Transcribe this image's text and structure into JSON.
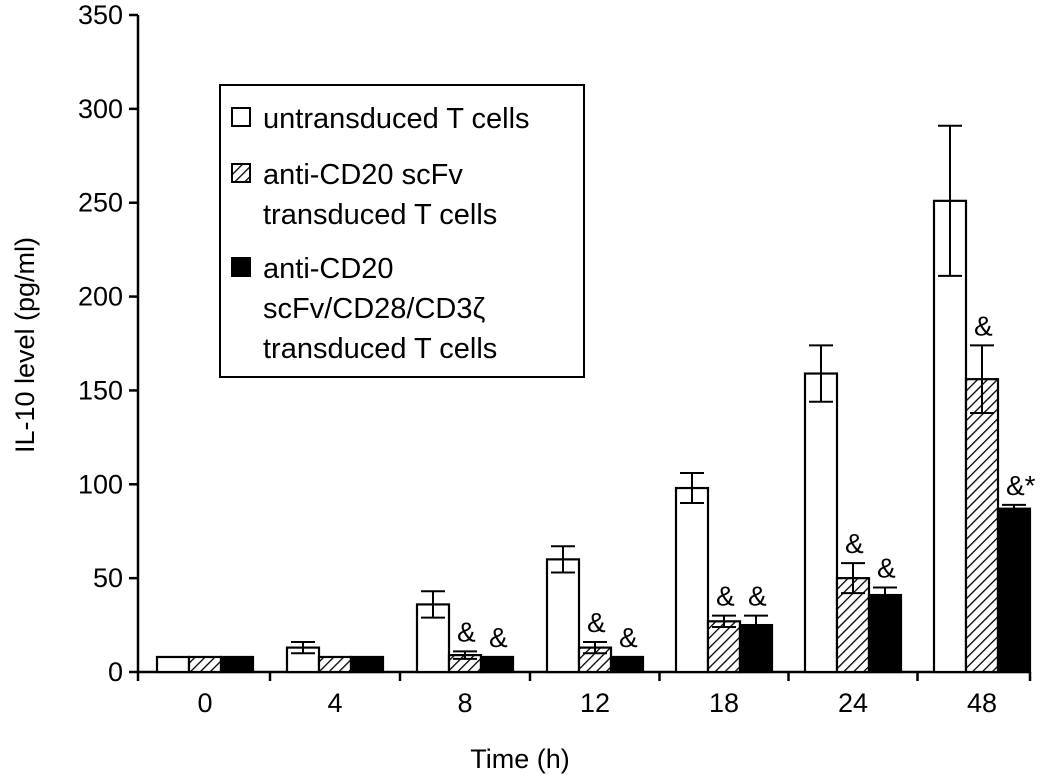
{
  "chart_data": {
    "type": "bar",
    "title": "",
    "xlabel": "Time (h)",
    "ylabel": "IL-10 level (pg/ml)",
    "ylim": [
      0,
      350
    ],
    "yticks": [
      0,
      50,
      100,
      150,
      200,
      250,
      300,
      350
    ],
    "categories": [
      "0",
      "4",
      "8",
      "12",
      "18",
      "24",
      "48"
    ],
    "grid": false,
    "legend_position": "top-left",
    "series": [
      {
        "name": "untransduced T cells",
        "pattern": "open",
        "values": [
          8,
          13,
          36,
          60,
          98,
          159,
          251
        ],
        "errors": [
          0,
          3,
          7,
          7,
          8,
          15,
          40
        ]
      },
      {
        "name": "anti-CD20 scFv transduced T cells",
        "legend_lines": [
          "anti-CD20 scFv",
          "transduced T cells"
        ],
        "pattern": "hatched",
        "values": [
          8,
          8,
          9,
          13,
          27,
          50,
          156
        ],
        "errors": [
          0,
          0,
          2,
          3,
          3,
          8,
          18
        ]
      },
      {
        "name": "anti-CD20 scFv/CD28/CD3ζ transduced T cells",
        "legend_lines": [
          "anti-CD20",
          "scFv/CD28/CD3ζ",
          "transduced T cells"
        ],
        "pattern": "solid",
        "values": [
          8,
          8,
          8,
          8,
          25,
          41,
          87
        ],
        "errors": [
          0,
          0,
          0,
          0,
          5,
          4,
          2
        ]
      }
    ],
    "annotations": [
      {
        "category": "8",
        "series": 1,
        "text": "&"
      },
      {
        "category": "8",
        "series": 2,
        "text": "&"
      },
      {
        "category": "12",
        "series": 1,
        "text": "&"
      },
      {
        "category": "12",
        "series": 2,
        "text": "&"
      },
      {
        "category": "18",
        "series": 1,
        "text": "&"
      },
      {
        "category": "18",
        "series": 2,
        "text": "&"
      },
      {
        "category": "24",
        "series": 1,
        "text": "&"
      },
      {
        "category": "24",
        "series": 2,
        "text": "&"
      },
      {
        "category": "48",
        "series": 1,
        "text": "&"
      },
      {
        "category": "48",
        "series": 2,
        "text": "&*"
      }
    ]
  }
}
